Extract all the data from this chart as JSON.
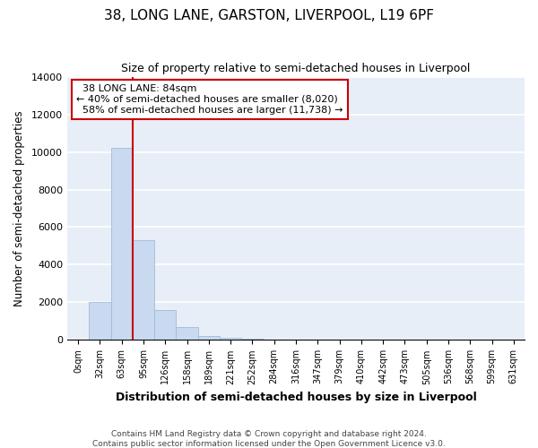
{
  "title": "38, LONG LANE, GARSTON, LIVERPOOL, L19 6PF",
  "subtitle": "Size of property relative to semi-detached houses in Liverpool",
  "xlabel": "Distribution of semi-detached houses by size in Liverpool",
  "ylabel": "Number of semi-detached properties",
  "categories": [
    "0sqm",
    "32sqm",
    "63sqm",
    "95sqm",
    "126sqm",
    "158sqm",
    "189sqm",
    "221sqm",
    "252sqm",
    "284sqm",
    "316sqm",
    "347sqm",
    "379sqm",
    "410sqm",
    "442sqm",
    "473sqm",
    "505sqm",
    "536sqm",
    "568sqm",
    "599sqm",
    "631sqm"
  ],
  "values": [
    0,
    2000,
    10200,
    5300,
    1600,
    680,
    220,
    130,
    50,
    0,
    0,
    0,
    0,
    0,
    0,
    0,
    0,
    0,
    0,
    0,
    0
  ],
  "bar_color": "#C8D9F0",
  "bar_edge_color": "#A0BCD8",
  "property_label": "38 LONG LANE: 84sqm",
  "pct_smaller": 40,
  "pct_larger": 58,
  "n_smaller": "8,020",
  "n_larger": "11,738",
  "vline_x_index": 2.5,
  "vline_color": "#CC0000",
  "annotation_box_color": "#CC0000",
  "background_color": "#E8EEF8",
  "ylim": [
    0,
    14000
  ],
  "yticks": [
    0,
    2000,
    4000,
    6000,
    8000,
    10000,
    12000,
    14000
  ],
  "footnote_line1": "Contains HM Land Registry data © Crown copyright and database right 2024.",
  "footnote_line2": "Contains public sector information licensed under the Open Government Licence v3.0."
}
